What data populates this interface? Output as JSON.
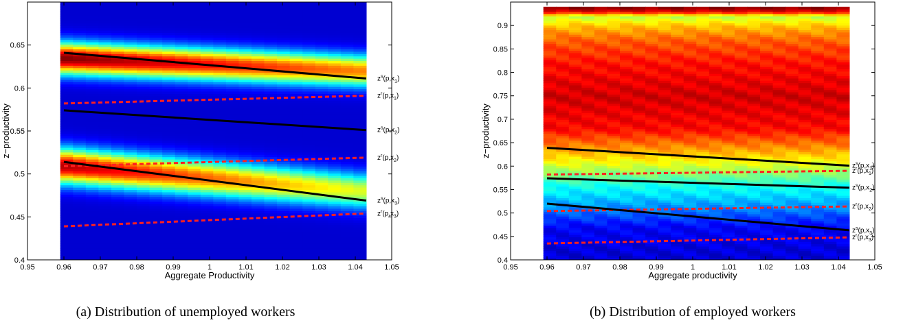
{
  "chart_data": [
    {
      "type": "heatmap",
      "caption": "(a) Distribution of unemployed workers",
      "xlabel": "Aggregate Productivity",
      "ylabel": "z−productivity",
      "xlim": [
        0.95,
        1.05
      ],
      "ylim": [
        0.4,
        0.7
      ],
      "xticks": [
        "0.95",
        "0.96",
        "0.97",
        "0.98",
        "0.99",
        "1",
        "1.01",
        "1.02",
        "1.03",
        "1.04",
        "1.05"
      ],
      "yticks": [
        "0.4",
        "0.45",
        "0.5",
        "0.55",
        "0.6",
        "0.65"
      ],
      "heatmap_x_range": [
        0.959,
        1.043
      ],
      "heatmap_y_range": [
        0.4,
        0.7
      ],
      "density_bands": [
        {
          "center_left": 0.635,
          "center_right": 0.62,
          "width": 0.018,
          "peak_left": 1.0,
          "peak_right": 0.72
        },
        {
          "center_left": 0.51,
          "center_right": 0.48,
          "width": 0.02,
          "peak_left": 0.95,
          "peak_right": 0.55
        }
      ],
      "colormap": "jet",
      "series": [
        {
          "label_base": "z",
          "label_sup": "s",
          "label_args": "(p,x",
          "label_sub": "1",
          "style": "solid",
          "color": "#000000",
          "x": [
            0.96,
            1.043
          ],
          "y": [
            0.641,
            0.611
          ]
        },
        {
          "label_base": "z",
          "label_sup": "r",
          "label_args": "(p,x",
          "label_sub": "1",
          "style": "dashed",
          "color": "#ff2020",
          "x": [
            0.96,
            1.043
          ],
          "y": [
            0.582,
            0.591
          ]
        },
        {
          "label_base": "z",
          "label_sup": "s",
          "label_args": "(p,x",
          "label_sub": "2",
          "style": "solid",
          "color": "#000000",
          "x": [
            0.96,
            1.043
          ],
          "y": [
            0.574,
            0.551
          ]
        },
        {
          "label_base": "z",
          "label_sup": "r",
          "label_args": "(p,x",
          "label_sub": "2",
          "style": "dashed",
          "color": "#ff2020",
          "x": [
            0.96,
            1.043
          ],
          "y": [
            0.509,
            0.519
          ]
        },
        {
          "label_base": "z",
          "label_sup": "s",
          "label_args": "(p,x",
          "label_sub": "3",
          "style": "solid",
          "color": "#000000",
          "x": [
            0.96,
            1.043
          ],
          "y": [
            0.514,
            0.469
          ]
        },
        {
          "label_base": "z",
          "label_sup": "r",
          "label_args": "(p,x",
          "label_sub": "3",
          "style": "dashed",
          "color": "#ff2020",
          "x": [
            0.96,
            1.043
          ],
          "y": [
            0.439,
            0.454
          ]
        }
      ]
    },
    {
      "type": "heatmap",
      "caption": "(b) Distribution of employed workers",
      "xlabel": "Aggregate productivity",
      "ylabel": "z−productivity",
      "xlim": [
        0.95,
        1.05
      ],
      "ylim": [
        0.4,
        0.95
      ],
      "xticks": [
        "0.95",
        "0.96",
        "0.97",
        "0.98",
        "0.99",
        "1",
        "1.01",
        "1.02",
        "1.03",
        "1.04",
        "1.05"
      ],
      "yticks": [
        "0.4",
        "0.45",
        "0.5",
        "0.55",
        "0.6",
        "0.65",
        "0.7",
        "0.75",
        "0.8",
        "0.85",
        "0.9"
      ],
      "heatmap_x_range": [
        0.959,
        1.043
      ],
      "heatmap_y_range": [
        0.4,
        0.94
      ],
      "density_profile_y": [
        0.4,
        0.47,
        0.5,
        0.53,
        0.56,
        0.6,
        0.63,
        0.68,
        0.75,
        0.82,
        0.87,
        0.9,
        0.92,
        0.93,
        0.94
      ],
      "density_profile_v": [
        0.08,
        0.12,
        0.22,
        0.32,
        0.4,
        0.58,
        0.7,
        0.87,
        0.92,
        0.86,
        0.78,
        0.68,
        0.56,
        0.9,
        1.0
      ],
      "colormap": "jet",
      "series": [
        {
          "label_base": "z",
          "label_sup": "s",
          "label_args": "(p,x",
          "label_sub": "1",
          "style": "solid",
          "color": "#000000",
          "x": [
            0.96,
            1.043
          ],
          "y": [
            0.639,
            0.601
          ]
        },
        {
          "label_base": "z",
          "label_sup": "r",
          "label_args": "(p,x",
          "label_sub": "1",
          "style": "dashed",
          "color": "#ff2020",
          "x": [
            0.96,
            1.043
          ],
          "y": [
            0.582,
            0.59
          ]
        },
        {
          "label_base": "z",
          "label_sup": "s",
          "label_args": "(p,x",
          "label_sub": "2",
          "style": "solid",
          "color": "#000000",
          "x": [
            0.96,
            1.043
          ],
          "y": [
            0.574,
            0.554
          ]
        },
        {
          "label_base": "z",
          "label_sup": "r",
          "label_args": "(p,x",
          "label_sub": "2",
          "style": "dashed",
          "color": "#ff2020",
          "x": [
            0.96,
            1.043
          ],
          "y": [
            0.504,
            0.514
          ]
        },
        {
          "label_base": "z",
          "label_sup": "s",
          "label_args": "(p,x",
          "label_sub": "3",
          "style": "solid",
          "color": "#000000",
          "x": [
            0.96,
            1.043
          ],
          "y": [
            0.52,
            0.463
          ]
        },
        {
          "label_base": "z",
          "label_sup": "r",
          "label_args": "(p,x",
          "label_sub": "3",
          "style": "dashed",
          "color": "#ff2020",
          "x": [
            0.96,
            1.043
          ],
          "y": [
            0.435,
            0.448
          ]
        }
      ]
    }
  ]
}
